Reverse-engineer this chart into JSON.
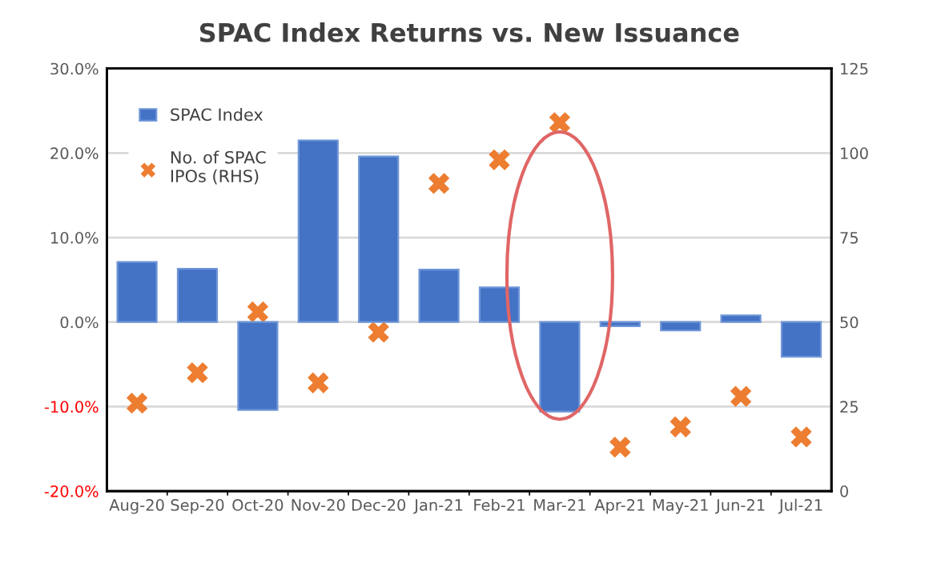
{
  "chart_data": {
    "type": "bar",
    "title": "SPAC Index Returns vs. New Issuance",
    "categories": [
      "Aug-20",
      "Sep-20",
      "Oct-20",
      "Nov-20",
      "Dec-20",
      "Jan-21",
      "Feb-21",
      "Mar-21",
      "Apr-21",
      "May-21",
      "Jun-21",
      "Jul-21"
    ],
    "series": [
      {
        "name": "SPAC Index",
        "color": "#4472c4",
        "values": [
          7.1,
          6.3,
          -10.4,
          21.5,
          19.6,
          6.2,
          4.1,
          -10.6,
          -0.5,
          -1.0,
          0.8,
          -4.1
        ]
      },
      {
        "name": "No. of SPAC IPOs (RHS)",
        "type": "scatter",
        "axis": "y2",
        "marker": "cross",
        "color": "#ed7d31",
        "values": [
          26,
          35,
          53,
          32,
          47,
          91,
          98,
          109,
          13,
          19,
          28,
          16
        ]
      }
    ],
    "ylim": [
      -20,
      30
    ],
    "yticks": [
      {
        "value": -20,
        "label": "-20.0%"
      },
      {
        "value": -10,
        "label": "-10.0%"
      },
      {
        "value": 0,
        "label": "0.0%"
      },
      {
        "value": 10,
        "label": "10.0%"
      },
      {
        "value": 20,
        "label": "20.0%"
      },
      {
        "value": 30,
        "label": "30.0%"
      }
    ],
    "y2lim": [
      0,
      125
    ],
    "y2ticks": [
      0,
      25,
      50,
      75,
      100,
      125
    ],
    "grid": true,
    "legend": "top left"
  }
}
